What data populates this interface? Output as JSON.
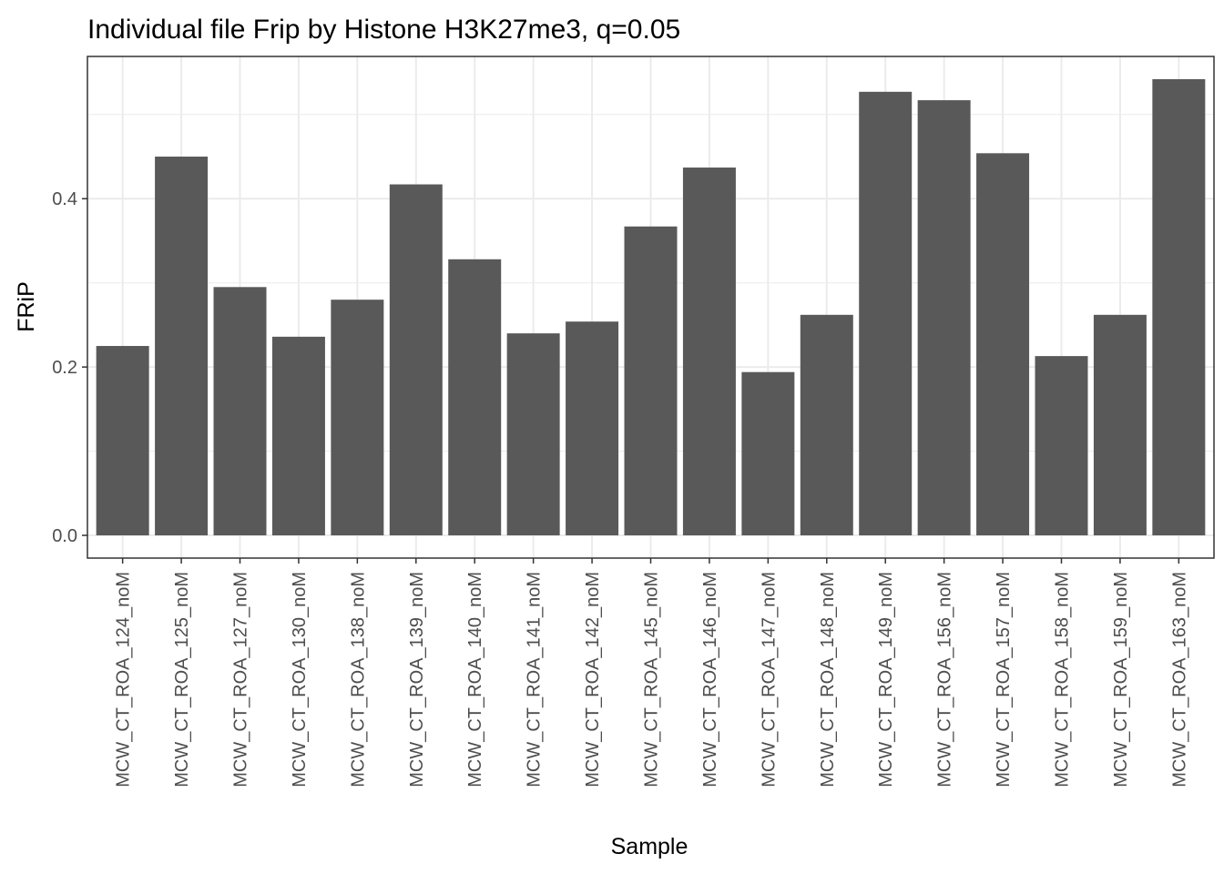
{
  "chart_data": {
    "type": "bar",
    "title": "Individual file Frip by Histone H3K27me3, q=0.05",
    "xlabel": "Sample",
    "ylabel": "FRiP",
    "categories": [
      "MCW_CT_ROA_124_noM",
      "MCW_CT_ROA_125_noM",
      "MCW_CT_ROA_127_noM",
      "MCW_CT_ROA_130_noM",
      "MCW_CT_ROA_138_noM",
      "MCW_CT_ROA_139_noM",
      "MCW_CT_ROA_140_noM",
      "MCW_CT_ROA_141_noM",
      "MCW_CT_ROA_142_noM",
      "MCW_CT_ROA_145_noM",
      "MCW_CT_ROA_146_noM",
      "MCW_CT_ROA_147_noM",
      "MCW_CT_ROA_148_noM",
      "MCW_CT_ROA_149_noM",
      "MCW_CT_ROA_156_noM",
      "MCW_CT_ROA_157_noM",
      "MCW_CT_ROA_158_noM",
      "MCW_CT_ROA_159_noM",
      "MCW_CT_ROA_163_noM"
    ],
    "values": [
      0.225,
      0.45,
      0.295,
      0.236,
      0.28,
      0.417,
      0.328,
      0.24,
      0.254,
      0.367,
      0.437,
      0.194,
      0.262,
      0.527,
      0.517,
      0.454,
      0.213,
      0.262,
      0.542
    ],
    "yticks": [
      0.0,
      0.2,
      0.4
    ],
    "ytick_labels": [
      "0.0",
      "0.2",
      "0.4"
    ],
    "ylim": [
      -0.027,
      0.569
    ],
    "bar_color": "#595959",
    "grid": true,
    "grid_color": "#ebebeb",
    "panel_border_color": "#333333",
    "legend": "none"
  }
}
